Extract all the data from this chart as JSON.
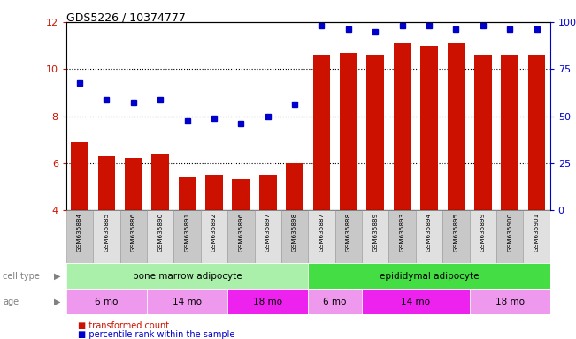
{
  "title": "GDS5226 / 10374777",
  "samples": [
    "GSM635884",
    "GSM635885",
    "GSM635886",
    "GSM635890",
    "GSM635891",
    "GSM635892",
    "GSM635896",
    "GSM635897",
    "GSM635898",
    "GSM635887",
    "GSM635888",
    "GSM635889",
    "GSM635893",
    "GSM635894",
    "GSM635895",
    "GSM635899",
    "GSM635900",
    "GSM635901"
  ],
  "bar_values": [
    6.9,
    6.3,
    6.2,
    6.4,
    5.4,
    5.5,
    5.3,
    5.5,
    6.0,
    10.6,
    10.7,
    10.6,
    11.1,
    11.0,
    11.1,
    10.6,
    10.6,
    10.6
  ],
  "dot_values": [
    9.4,
    8.7,
    8.6,
    8.7,
    7.8,
    7.9,
    7.7,
    8.0,
    8.5,
    11.85,
    11.7,
    11.6,
    11.85,
    11.85,
    11.7,
    11.85,
    11.7,
    11.7
  ],
  "bar_color": "#cc1100",
  "dot_color": "#0000cc",
  "ylim": [
    4,
    12
  ],
  "y_left_ticks": [
    4,
    6,
    8,
    10,
    12
  ],
  "y_right_ticks": [
    0,
    25,
    50,
    75,
    100
  ],
  "y_right_labels": [
    "0",
    "25",
    "50",
    "75",
    "100%"
  ],
  "dotted_lines": [
    6,
    8,
    10
  ],
  "cell_type_color_light": "#aaf0aa",
  "cell_type_color_bright": "#44dd44",
  "age_color_light": "#ee99ee",
  "age_color_bright": "#ee22ee",
  "legend_bar_label": "transformed count",
  "legend_dot_label": "percentile rank within the sample",
  "cell_type_spans": [
    {
      "start": 0,
      "end": 8,
      "label": "bone marrow adipocyte"
    },
    {
      "start": 9,
      "end": 17,
      "label": "epididymal adipocyte"
    }
  ],
  "age_spans": [
    {
      "start": 0,
      "end": 2,
      "label": "6 mo",
      "bright": false
    },
    {
      "start": 3,
      "end": 5,
      "label": "14 mo",
      "bright": false
    },
    {
      "start": 6,
      "end": 8,
      "label": "18 mo",
      "bright": true
    },
    {
      "start": 9,
      "end": 10,
      "label": "6 mo",
      "bright": false
    },
    {
      "start": 11,
      "end": 14,
      "label": "14 mo",
      "bright": true
    },
    {
      "start": 15,
      "end": 17,
      "label": "18 mo",
      "bright": false
    }
  ]
}
